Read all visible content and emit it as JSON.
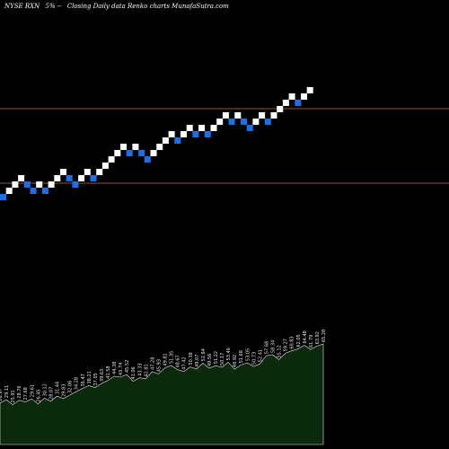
{
  "header": {
    "symbol": "NYSE RXN",
    "pct": "5%",
    "description": "Closing Daily data  Renko  charts MunafaSutra.com"
  },
  "colors": {
    "background": "#000000",
    "up_brick": "#ffffff",
    "down_brick": "#1e6fe6",
    "ref_line": "#8b5a2b",
    "volume_fill": "#0b2a0b",
    "volume_stroke": "#e8e8e8",
    "label": "#e8e8e8"
  },
  "chart_data": {
    "type": "renko",
    "title": "NYSE RXN 5%-- Closing Daily data  Renko  charts MunafaSutra.com",
    "brick_size_pct": 5,
    "bricks": [
      "down",
      "up",
      "up",
      "up",
      "down",
      "down",
      "up",
      "down",
      "up",
      "up",
      "up",
      "down",
      "down",
      "up",
      "up",
      "down",
      "up",
      "up",
      "up",
      "up",
      "up",
      "down",
      "up",
      "down",
      "down",
      "up",
      "up",
      "up",
      "up",
      "down",
      "up",
      "up",
      "down",
      "up",
      "down",
      "up",
      "up",
      "up",
      "down",
      "up",
      "down",
      "down",
      "up",
      "up",
      "down",
      "up",
      "up",
      "up",
      "up",
      "down",
      "up",
      "up"
    ],
    "reference_lines": [
      "upper",
      "lower"
    ],
    "volume": {
      "values": [
        {
          "label": "26.97",
          "value": 26.97
        },
        {
          "label": "29.11",
          "value": 29.11
        },
        {
          "label": "25.91",
          "value": 25.91
        },
        {
          "label": "28.76",
          "value": 28.76
        },
        {
          "label": "27.68",
          "value": 27.68
        },
        {
          "label": "29.61",
          "value": 29.61
        },
        {
          "label": "26.45",
          "value": 26.45
        },
        {
          "label": "30.12",
          "value": 30.12
        },
        {
          "label": "28.07",
          "value": 28.07
        },
        {
          "label": "31.44",
          "value": 31.44
        },
        {
          "label": "29.83",
          "value": 29.83
        },
        {
          "label": "32.06",
          "value": 32.06
        },
        {
          "label": "34.28",
          "value": 34.28
        },
        {
          "label": "36.47",
          "value": 36.47
        },
        {
          "label": "38.21",
          "value": 38.21
        },
        {
          "label": "37.05",
          "value": 37.05
        },
        {
          "label": "39.63",
          "value": 39.63
        },
        {
          "label": "41.58",
          "value": 41.58
        },
        {
          "label": "44.38",
          "value": 44.38
        },
        {
          "label": "43.74",
          "value": 43.74
        },
        {
          "label": "45.52",
          "value": 45.52
        },
        {
          "label": "41.06",
          "value": 41.06
        },
        {
          "label": "43.33",
          "value": 43.33
        },
        {
          "label": "42.81",
          "value": 42.81
        },
        {
          "label": "47.28",
          "value": 47.28
        },
        {
          "label": "45.93",
          "value": 45.93
        },
        {
          "label": "49.81",
          "value": 49.81
        },
        {
          "label": "51.35",
          "value": 51.35
        },
        {
          "label": "48.67",
          "value": 48.67
        },
        {
          "label": "47.42",
          "value": 47.42
        },
        {
          "label": "50.38",
          "value": 50.38
        },
        {
          "label": "49.07",
          "value": 49.07
        },
        {
          "label": "52.84",
          "value": 52.84
        },
        {
          "label": "49.56",
          "value": 49.56
        },
        {
          "label": "51.22",
          "value": 51.22
        },
        {
          "label": "50.17",
          "value": 50.17
        },
        {
          "label": "53.46",
          "value": 53.46
        },
        {
          "label": "48.92",
          "value": 48.92
        },
        {
          "label": "51.68",
          "value": 51.68
        },
        {
          "label": "53.05",
          "value": 53.05
        },
        {
          "label": "50.73",
          "value": 50.73
        },
        {
          "label": "52.41",
          "value": 52.41
        },
        {
          "label": "57.68",
          "value": 57.68
        },
        {
          "label": "58.34",
          "value": 58.34
        },
        {
          "label": "55.12",
          "value": 55.12
        },
        {
          "label": "59.27",
          "value": 59.27
        },
        {
          "label": "60.83",
          "value": 60.83
        },
        {
          "label": "62.05",
          "value": 62.05
        },
        {
          "label": "64.48",
          "value": 64.48
        },
        {
          "label": "61.79",
          "value": 61.79
        },
        {
          "label": "63.92",
          "value": 63.92
        },
        {
          "label": "65.28",
          "value": 65.28
        }
      ],
      "ylim": [
        0,
        70
      ]
    }
  }
}
